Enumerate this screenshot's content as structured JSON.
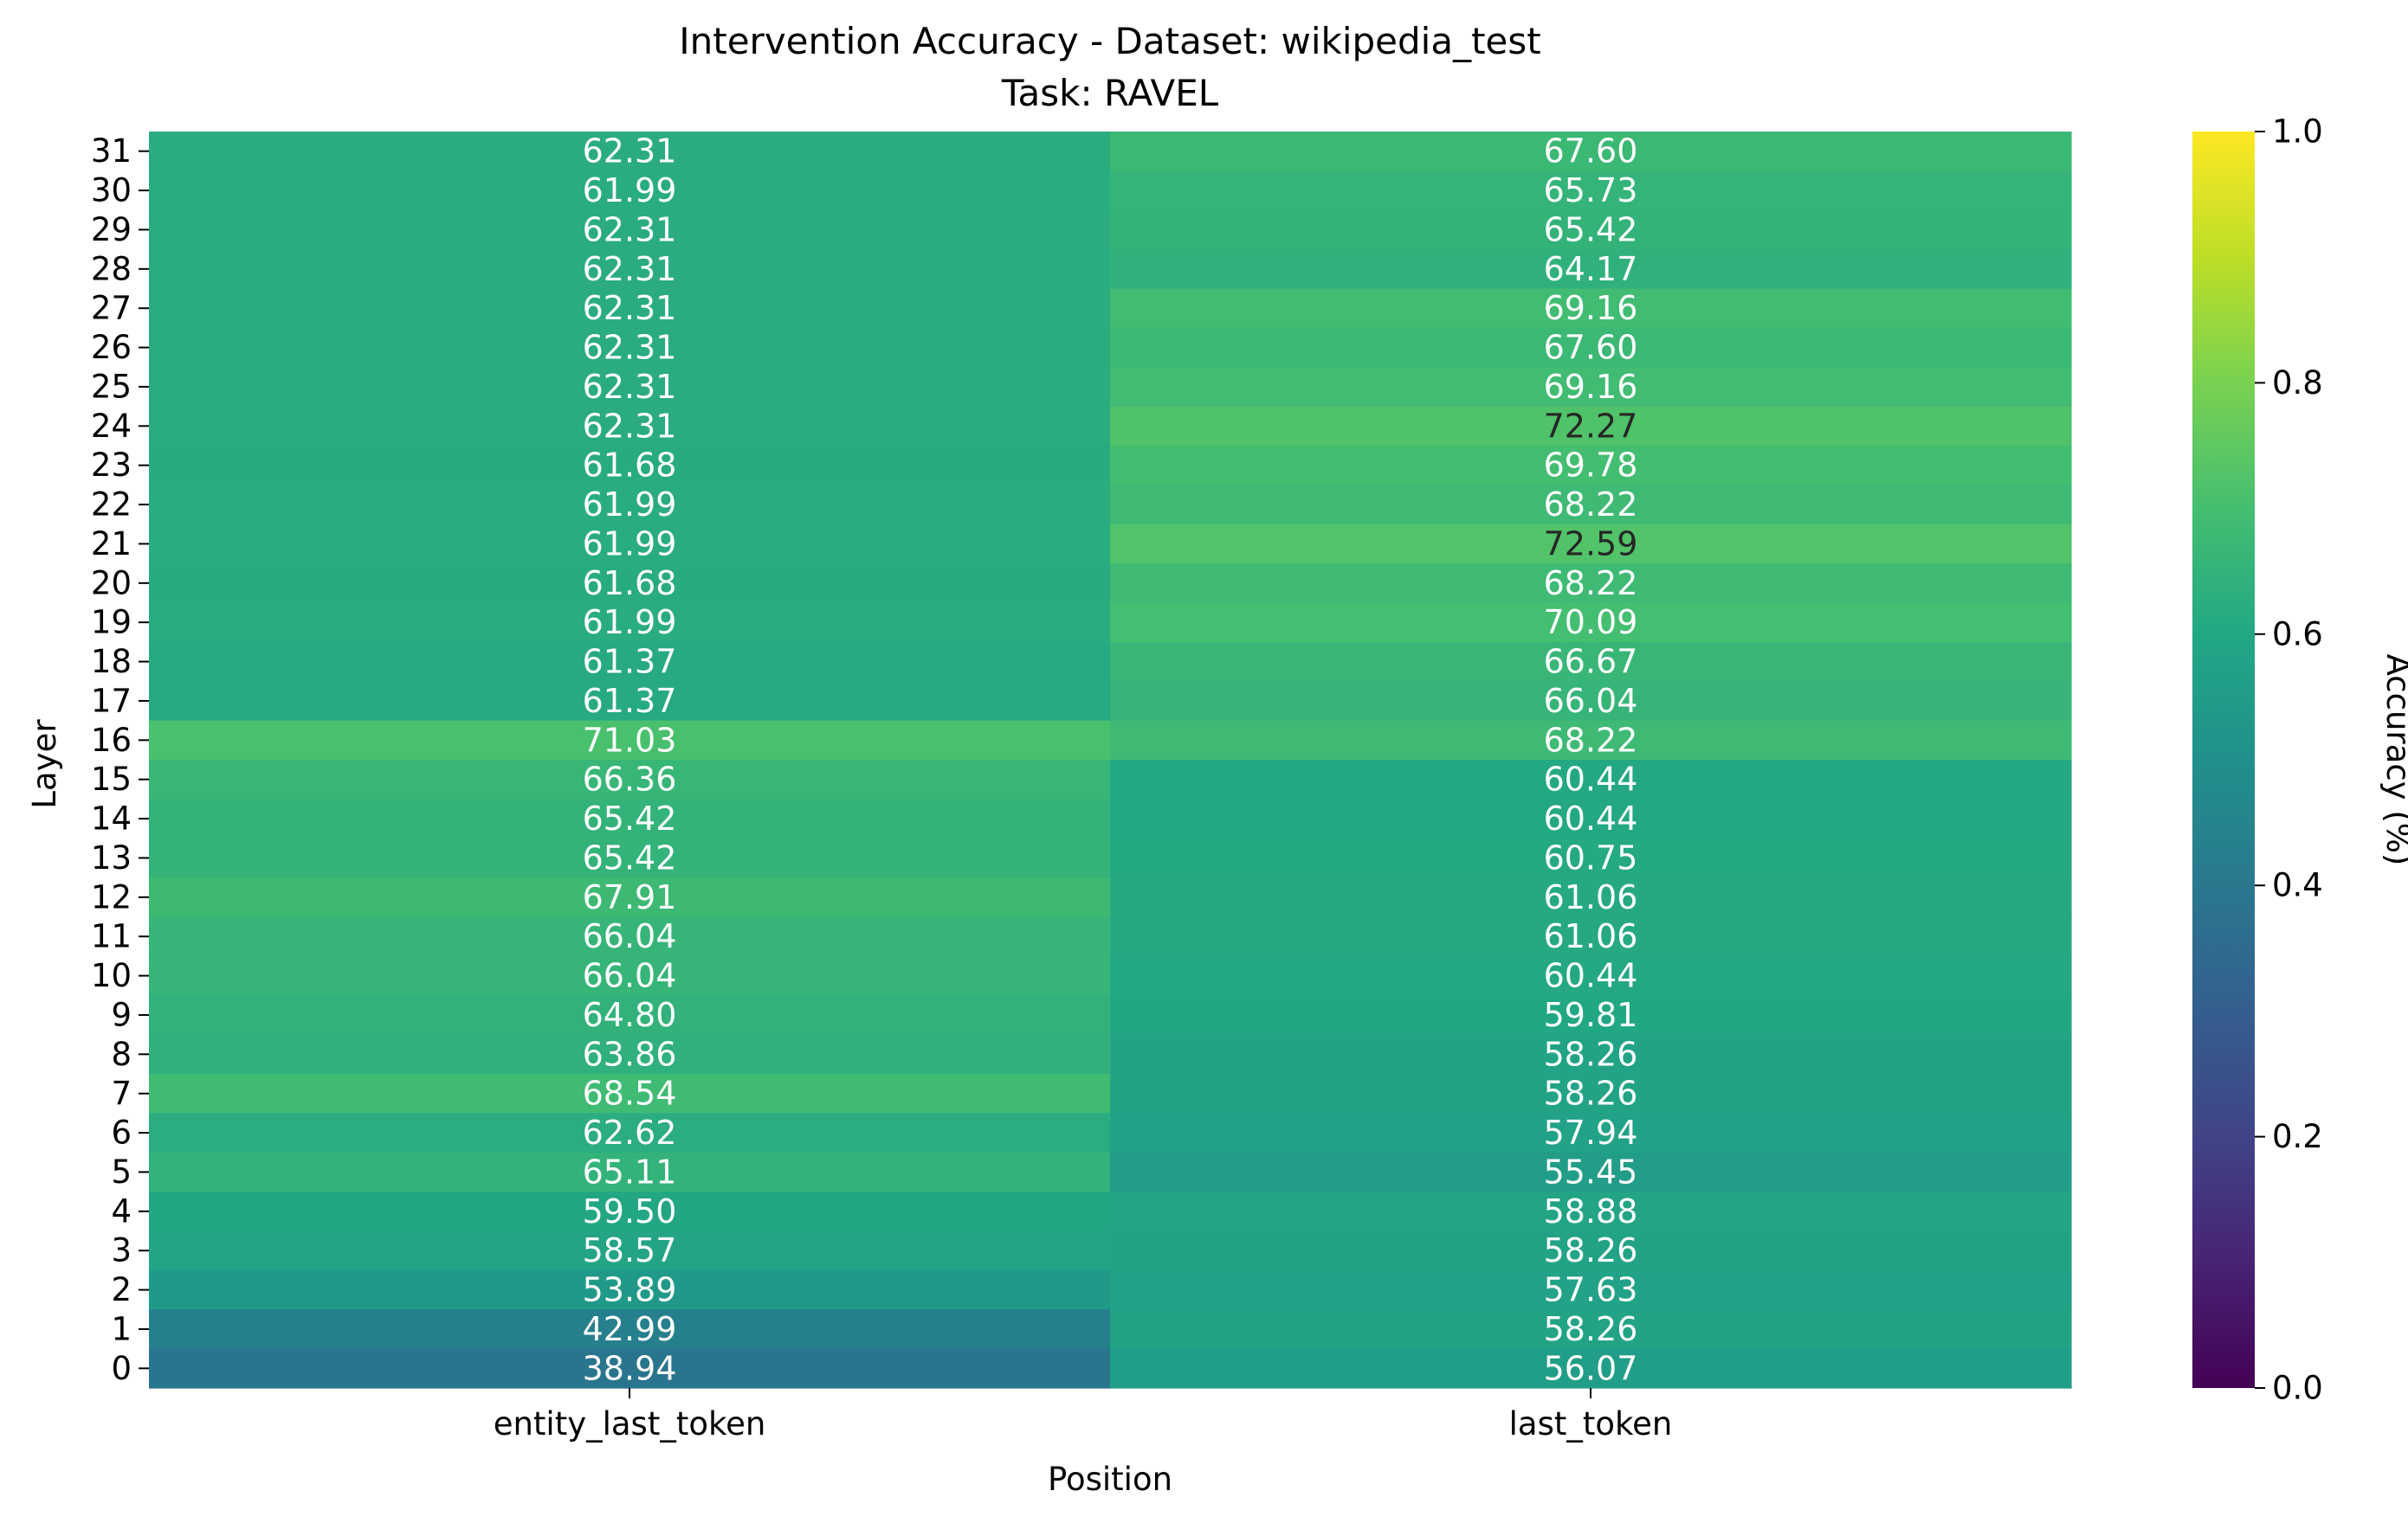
{
  "chart_data": {
    "type": "heatmap",
    "title": "Intervention Accuracy - Dataset: wikipedia_test",
    "subtitle": "Task: RAVEL",
    "xlabel": "Position",
    "ylabel": "Layer",
    "colorbar_label": "Accuracy (%)",
    "colormap": "viridis",
    "color_range": [
      0.0,
      1.0
    ],
    "colorbar_ticks": [
      "0.0",
      "0.2",
      "0.4",
      "0.6",
      "0.8",
      "1.0"
    ],
    "columns": [
      "entity_last_token",
      "last_token"
    ],
    "rows": [
      "31",
      "30",
      "29",
      "28",
      "27",
      "26",
      "25",
      "24",
      "23",
      "22",
      "21",
      "20",
      "19",
      "18",
      "17",
      "16",
      "15",
      "14",
      "13",
      "12",
      "11",
      "10",
      "9",
      "8",
      "7",
      "6",
      "5",
      "4",
      "3",
      "2",
      "1",
      "0"
    ],
    "values": [
      [
        "62.31",
        "67.60"
      ],
      [
        "61.99",
        "65.73"
      ],
      [
        "62.31",
        "65.42"
      ],
      [
        "62.31",
        "64.17"
      ],
      [
        "62.31",
        "69.16"
      ],
      [
        "62.31",
        "67.60"
      ],
      [
        "62.31",
        "69.16"
      ],
      [
        "62.31",
        "72.27"
      ],
      [
        "61.68",
        "69.78"
      ],
      [
        "61.99",
        "68.22"
      ],
      [
        "61.99",
        "72.59"
      ],
      [
        "61.68",
        "68.22"
      ],
      [
        "61.99",
        "70.09"
      ],
      [
        "61.37",
        "66.67"
      ],
      [
        "61.37",
        "66.04"
      ],
      [
        "71.03",
        "68.22"
      ],
      [
        "66.36",
        "60.44"
      ],
      [
        "65.42",
        "60.44"
      ],
      [
        "65.42",
        "60.75"
      ],
      [
        "67.91",
        "61.06"
      ],
      [
        "66.04",
        "61.06"
      ],
      [
        "66.04",
        "60.44"
      ],
      [
        "64.80",
        "59.81"
      ],
      [
        "63.86",
        "58.26"
      ],
      [
        "68.54",
        "58.26"
      ],
      [
        "62.62",
        "57.94"
      ],
      [
        "65.11",
        "55.45"
      ],
      [
        "59.50",
        "58.88"
      ],
      [
        "58.57",
        "58.26"
      ],
      [
        "53.89",
        "57.63"
      ],
      [
        "42.99",
        "58.26"
      ],
      [
        "38.94",
        "56.07"
      ]
    ]
  }
}
